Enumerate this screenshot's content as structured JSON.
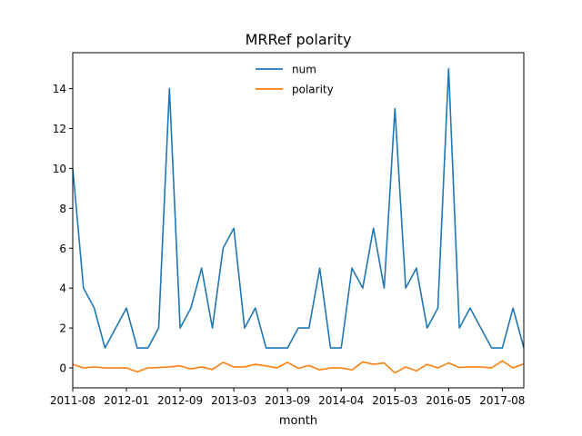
{
  "chart_data": {
    "type": "line",
    "title": "MRRef polarity",
    "xlabel": "month",
    "ylabel": "",
    "x_tick_labels": [
      "2011-08",
      "2012-01",
      "2012-09",
      "2013-03",
      "2013-09",
      "2014-04",
      "2015-03",
      "2016-05",
      "2017-08"
    ],
    "x_tick_index": [
      0,
      5,
      10,
      15,
      20,
      25,
      30,
      35,
      40
    ],
    "ylim": [
      -1.0,
      15.8
    ],
    "y_ticks": [
      0,
      2,
      4,
      6,
      8,
      10,
      12,
      14
    ],
    "legend_position": "upper center",
    "grid": false,
    "series": [
      {
        "name": "num",
        "color": "#1f77b4",
        "values": [
          10,
          4,
          3,
          1,
          2,
          3,
          1,
          1,
          2,
          14,
          2,
          3,
          5,
          2,
          6,
          7,
          2,
          3,
          1,
          1,
          1,
          2,
          2,
          5,
          1,
          1,
          5,
          4,
          7,
          4,
          13,
          4,
          5,
          2,
          3,
          15,
          2,
          3,
          2,
          1,
          1,
          3,
          1
        ]
      },
      {
        "name": "polarity",
        "color": "#ff7f0e",
        "values": [
          0.18,
          0.0,
          0.05,
          0.0,
          0.0,
          0.0,
          -0.2,
          0.0,
          0.02,
          0.05,
          0.1,
          -0.05,
          0.05,
          -0.08,
          0.28,
          0.05,
          0.05,
          0.18,
          0.1,
          0.0,
          0.28,
          -0.02,
          0.12,
          -0.1,
          0.0,
          0.0,
          -0.1,
          0.3,
          0.18,
          0.25,
          -0.25,
          0.05,
          -0.15,
          0.18,
          0.0,
          0.25,
          0.02,
          0.05,
          0.05,
          0.0,
          0.35,
          0.0,
          0.2
        ]
      }
    ]
  }
}
